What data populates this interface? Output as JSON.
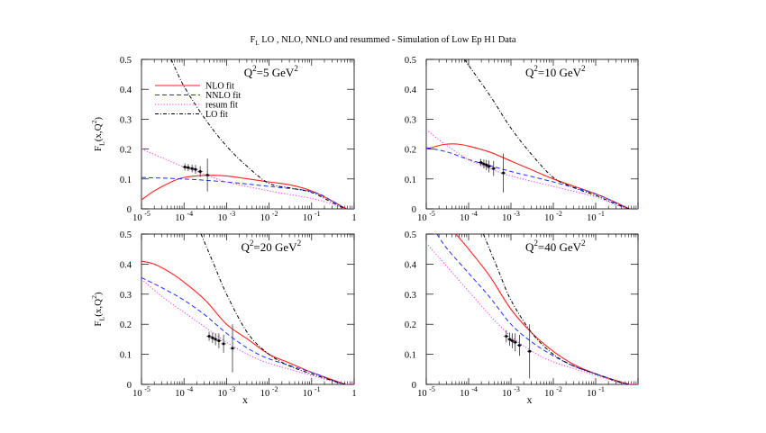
{
  "title": {
    "main": "F",
    "sub": "L",
    "rest": " LO , NLO, NNLO and resummed - Simulation of Low Ep H1 Data"
  },
  "colors": {
    "NLO": "#ff2020",
    "NNLO": "#2030ff",
    "resum": "#ff30ff",
    "LO": "#000000",
    "data": "#000000"
  },
  "chart_data": [
    {
      "type": "line",
      "panel_title": "Q^2=5 GeV^2",
      "xscale": "log",
      "xlim": [
        1e-05,
        1
      ],
      "ylim": [
        0,
        0.5
      ],
      "xlabel": "",
      "ylabel": "F_L(x,Q^2)",
      "x_ticks": [
        "10^-5",
        "10^-4",
        "10^-3",
        "10^-2",
        "10^-1",
        "1"
      ],
      "y_ticks": [
        "0",
        "0.1",
        "0.2",
        "0.3",
        "0.4",
        "0.5"
      ],
      "legend": {
        "position": "top-left",
        "entries": [
          "NLO fit",
          "NNLO fit",
          "resum fit",
          "LO fit"
        ]
      },
      "series": [
        {
          "name": "NLO fit",
          "style": "solid",
          "log10x": [
            -5,
            -4.7,
            -4.3,
            -4,
            -3.5,
            -3,
            -2,
            -1.5,
            -1,
            -0.5,
            -0.2,
            0
          ],
          "y": [
            0.03,
            0.06,
            0.09,
            0.105,
            0.112,
            0.11,
            0.09,
            0.08,
            0.06,
            0.025,
            0.002,
            0
          ]
        },
        {
          "name": "NNLO fit",
          "style": "dashed",
          "log10x": [
            -5,
            -4,
            -3,
            -2,
            -1,
            -0.5,
            -0.2,
            0
          ],
          "y": [
            0.105,
            0.1,
            0.09,
            0.075,
            0.058,
            0.025,
            0,
            0
          ]
        },
        {
          "name": "resum fit",
          "style": "dotted",
          "log10x": [
            -5,
            -4.5,
            -4,
            -3.5,
            -3,
            -2,
            -1,
            -0.5,
            -0.2,
            0
          ],
          "y": [
            0.2,
            0.17,
            0.14,
            0.115,
            0.09,
            0.06,
            0.035,
            0.015,
            0,
            0
          ]
        },
        {
          "name": "LO fit",
          "style": "dashdot",
          "log10x": [
            -4.3,
            -4,
            -3.5,
            -3,
            -2.5,
            -2,
            -1.5,
            -1,
            -0.5,
            -0.2
          ],
          "y": [
            0.5,
            0.41,
            0.3,
            0.21,
            0.14,
            0.085,
            0.07,
            0.055,
            0.02,
            0
          ]
        }
      ],
      "points": {
        "log10x": [
          -3.98,
          -3.9,
          -3.81,
          -3.73,
          -3.62,
          -3.45
        ],
        "y": [
          0.14,
          0.138,
          0.135,
          0.132,
          0.125,
          0.113
        ],
        "err": [
          0.012,
          0.012,
          0.013,
          0.015,
          0.018,
          0.055
        ]
      }
    },
    {
      "type": "line",
      "panel_title": "Q^2=10 GeV^2",
      "xscale": "log",
      "xlim": [
        1e-05,
        1
      ],
      "ylim": [
        0,
        0.5
      ],
      "xlabel": "",
      "ylabel": "",
      "x_ticks": [
        "10^-5",
        "10^-4",
        "10^-3",
        "10^-2",
        "10^-1",
        ""
      ],
      "y_ticks": [
        "0",
        "0.1",
        "0.2",
        "0.3",
        "0.4",
        "0.5"
      ],
      "series": [
        {
          "name": "NLO fit",
          "style": "solid",
          "log10x": [
            -5,
            -4.6,
            -4.3,
            -4,
            -3.5,
            -3,
            -2.5,
            -2,
            -1.5,
            -1,
            -0.5,
            -0.2,
            0
          ],
          "y": [
            0.2,
            0.215,
            0.217,
            0.21,
            0.19,
            0.16,
            0.13,
            0.1,
            0.075,
            0.05,
            0.02,
            0,
            0
          ]
        },
        {
          "name": "NNLO fit",
          "style": "dashed",
          "log10x": [
            -5,
            -4.5,
            -4,
            -3.5,
            -3,
            -2,
            -1,
            -0.5,
            -0.2,
            0
          ],
          "y": [
            0.205,
            0.19,
            0.165,
            0.145,
            0.125,
            0.09,
            0.05,
            0.018,
            0,
            0
          ]
        },
        {
          "name": "resum fit",
          "style": "dotted",
          "log10x": [
            -5,
            -4.5,
            -4,
            -3.5,
            -3,
            -2,
            -1,
            -0.5,
            -0.2,
            0
          ],
          "y": [
            0.265,
            0.21,
            0.165,
            0.135,
            0.11,
            0.075,
            0.04,
            0.012,
            0,
            0
          ]
        },
        {
          "name": "LO fit",
          "style": "dashdot",
          "log10x": [
            -4.1,
            -3.5,
            -3,
            -2.5,
            -2,
            -1.5,
            -1,
            -0.5,
            -0.2
          ],
          "y": [
            0.5,
            0.38,
            0.27,
            0.18,
            0.105,
            0.07,
            0.045,
            0.015,
            0
          ]
        }
      ],
      "points": {
        "log10x": [
          -3.71,
          -3.64,
          -3.58,
          -3.52,
          -3.41,
          -3.18
        ],
        "y": [
          0.155,
          0.15,
          0.147,
          0.142,
          0.135,
          0.12
        ],
        "err": [
          0.012,
          0.015,
          0.017,
          0.02,
          0.025,
          0.065
        ]
      }
    },
    {
      "type": "line",
      "panel_title": "Q^2=20 GeV^2",
      "xscale": "log",
      "xlim": [
        1e-05,
        1
      ],
      "ylim": [
        0,
        0.5
      ],
      "xlabel": "x",
      "ylabel": "F_L(x,Q^2)",
      "x_ticks": [
        "10^-5",
        "10^-4",
        "10^-3",
        "10^-2",
        "10^-1",
        "1"
      ],
      "y_ticks": [
        "0",
        "0.1",
        "0.2",
        "0.3",
        "0.4",
        "0.5"
      ],
      "series": [
        {
          "name": "NLO fit",
          "style": "solid",
          "log10x": [
            -5,
            -4.7,
            -4.3,
            -4,
            -3.5,
            -3,
            -2.5,
            -2,
            -1.5,
            -1,
            -0.5,
            -0.2,
            0
          ],
          "y": [
            0.41,
            0.4,
            0.37,
            0.34,
            0.28,
            0.2,
            0.15,
            0.1,
            0.07,
            0.04,
            0.015,
            0,
            0
          ]
        },
        {
          "name": "NNLO fit",
          "style": "dashed",
          "log10x": [
            -5,
            -4.5,
            -4,
            -3.5,
            -3,
            -2.5,
            -2,
            -1,
            -0.5,
            -0.2,
            0
          ],
          "y": [
            0.355,
            0.32,
            0.28,
            0.23,
            0.17,
            0.12,
            0.085,
            0.04,
            0.013,
            0,
            0
          ]
        },
        {
          "name": "resum fit",
          "style": "dotted",
          "log10x": [
            -5,
            -4.5,
            -4,
            -3.5,
            -3,
            -2.5,
            -2,
            -1,
            -0.5,
            -0.2,
            0
          ],
          "y": [
            0.35,
            0.29,
            0.24,
            0.19,
            0.14,
            0.1,
            0.07,
            0.03,
            0.01,
            0,
            0
          ]
        },
        {
          "name": "LO fit",
          "style": "dashdot",
          "log10x": [
            -3.6,
            -3.3,
            -3,
            -2.5,
            -2,
            -1.5,
            -1,
            -0.5,
            -0.2
          ],
          "y": [
            0.5,
            0.4,
            0.3,
            0.17,
            0.1,
            0.06,
            0.035,
            0.012,
            0
          ]
        }
      ],
      "points": {
        "log10x": [
          -3.41,
          -3.33,
          -3.26,
          -3.18,
          -3.07,
          -2.86
        ],
        "y": [
          0.16,
          0.155,
          0.15,
          0.145,
          0.135,
          0.12
        ],
        "err": [
          0.015,
          0.017,
          0.02,
          0.025,
          0.03,
          0.08
        ]
      }
    },
    {
      "type": "line",
      "panel_title": "Q^2=40 GeV^2",
      "xscale": "log",
      "xlim": [
        1e-05,
        1
      ],
      "ylim": [
        0,
        0.5
      ],
      "xlabel": "x",
      "ylabel": "",
      "x_ticks": [
        "10^-5",
        "10^-4",
        "10^-3",
        "10^-2",
        "10^-1",
        ""
      ],
      "y_ticks": [
        "0",
        "0.1",
        "0.2",
        "0.3",
        "0.4",
        "0.5"
      ],
      "series": [
        {
          "name": "NLO fit",
          "style": "solid",
          "log10x": [
            -4.3,
            -4,
            -3.5,
            -3,
            -2.5,
            -2,
            -1.5,
            -1,
            -0.5,
            -0.2,
            0
          ],
          "y": [
            0.5,
            0.45,
            0.36,
            0.25,
            0.17,
            0.11,
            0.065,
            0.035,
            0.012,
            0,
            0
          ]
        },
        {
          "name": "NNLO fit",
          "style": "dashed",
          "log10x": [
            -4.75,
            -4.5,
            -4,
            -3.5,
            -3,
            -2.5,
            -2,
            -1.5,
            -1,
            -0.5,
            -0.2,
            0
          ],
          "y": [
            0.5,
            0.45,
            0.37,
            0.29,
            0.2,
            0.14,
            0.095,
            0.06,
            0.035,
            0.012,
            0,
            0
          ]
        },
        {
          "name": "resum fit",
          "style": "dotted",
          "log10x": [
            -5,
            -4.5,
            -4,
            -3.5,
            -3,
            -2.5,
            -2,
            -1,
            -0.5,
            -0.2,
            0
          ],
          "y": [
            0.47,
            0.39,
            0.31,
            0.23,
            0.16,
            0.11,
            0.075,
            0.03,
            0.008,
            0,
            0
          ]
        },
        {
          "name": "LO fit",
          "style": "dashdot",
          "log10x": [
            -3.65,
            -3.3,
            -3,
            -2.5,
            -2,
            -1.5,
            -1,
            -0.5,
            -0.2
          ],
          "y": [
            0.5,
            0.38,
            0.28,
            0.17,
            0.1,
            0.06,
            0.035,
            0.01,
            0
          ]
        }
      ],
      "points": {
        "log10x": [
          -3.11,
          -3.03,
          -2.97,
          -2.9,
          -2.8,
          -2.56
        ],
        "y": [
          0.16,
          0.15,
          0.145,
          0.14,
          0.13,
          0.11
        ],
        "err": [
          0.02,
          0.022,
          0.025,
          0.03,
          0.035,
          0.09
        ]
      }
    }
  ]
}
